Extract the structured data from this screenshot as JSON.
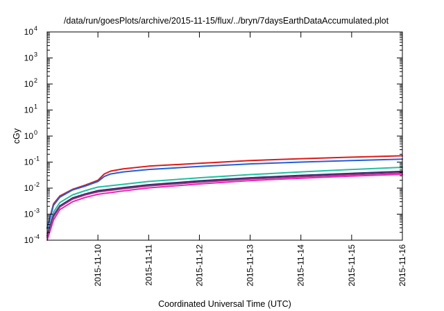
{
  "chart_data": {
    "type": "line",
    "title": "/data/run/goesPlots/archive/2015-11-15/flux/../bryn/7daysEarthDataAccumulated.plot",
    "xlabel": "Coordinated Universal Time (UTC)",
    "ylabel": "cGy",
    "yscale": "log",
    "ylim": [
      0.0001,
      10000
    ],
    "xlim": [
      "2015-11-09 00:00",
      "2015-11-16 00:00"
    ],
    "grid": false,
    "legend": "none",
    "x_tick_labels": [
      "2015-11-10",
      "2015-11-11",
      "2015-11-12",
      "2015-11-13",
      "2015-11-14",
      "2015-11-15",
      "2015-11-16"
    ],
    "y_tick_exponents": [
      "-4",
      "-3",
      "-2",
      "-1",
      "0",
      "1",
      "2",
      "3",
      "4"
    ],
    "y_tick_base": "10",
    "series": [
      {
        "color": "#e01818",
        "x": [
          "2015-11-09 00:00",
          "2015-11-09 03:00",
          "2015-11-09 06:00",
          "2015-11-09 12:00",
          "2015-11-09 18:00",
          "2015-11-10 00:00",
          "2015-11-10 03:00",
          "2015-11-10 06:00",
          "2015-11-10 12:00",
          "2015-11-11 00:00",
          "2015-11-12 00:00",
          "2015-11-13 00:00",
          "2015-11-14 00:00",
          "2015-11-15 00:00",
          "2015-11-16 00:00"
        ],
        "values": [
          0.0003,
          0.0025,
          0.005,
          0.009,
          0.013,
          0.02,
          0.035,
          0.045,
          0.055,
          0.07,
          0.09,
          0.115,
          0.135,
          0.155,
          0.175
        ]
      },
      {
        "color": "#1f5fe0",
        "x": [
          "2015-11-09 00:00",
          "2015-11-09 03:00",
          "2015-11-09 06:00",
          "2015-11-09 12:00",
          "2015-11-09 18:00",
          "2015-11-10 00:00",
          "2015-11-10 03:00",
          "2015-11-10 06:00",
          "2015-11-10 12:00",
          "2015-11-11 00:00",
          "2015-11-12 00:00",
          "2015-11-13 00:00",
          "2015-11-14 00:00",
          "2015-11-15 00:00",
          "2015-11-16 00:00"
        ],
        "values": [
          0.00028,
          0.0022,
          0.0045,
          0.0085,
          0.012,
          0.018,
          0.028,
          0.035,
          0.042,
          0.052,
          0.068,
          0.085,
          0.1,
          0.115,
          0.13
        ]
      },
      {
        "color": "#1fc0a0",
        "x": [
          "2015-11-09 00:00",
          "2015-11-09 03:00",
          "2015-11-09 06:00",
          "2015-11-09 12:00",
          "2015-11-09 18:00",
          "2015-11-10 00:00",
          "2015-11-10 12:00",
          "2015-11-11 00:00",
          "2015-11-12 00:00",
          "2015-11-13 00:00",
          "2015-11-14 00:00",
          "2015-11-15 00:00",
          "2015-11-16 00:00"
        ],
        "values": [
          0.00018,
          0.0012,
          0.0028,
          0.0055,
          0.008,
          0.011,
          0.014,
          0.018,
          0.025,
          0.033,
          0.042,
          0.052,
          0.063
        ]
      },
      {
        "color": "#2e2e6e",
        "x": [
          "2015-11-09 00:00",
          "2015-11-09 03:00",
          "2015-11-09 06:00",
          "2015-11-09 12:00",
          "2015-11-09 18:00",
          "2015-11-10 00:00",
          "2015-11-10 12:00",
          "2015-11-11 00:00",
          "2015-11-12 00:00",
          "2015-11-13 00:00",
          "2015-11-14 00:00",
          "2015-11-15 00:00",
          "2015-11-16 00:00"
        ],
        "values": [
          0.00015,
          0.0009,
          0.0021,
          0.0042,
          0.006,
          0.008,
          0.0105,
          0.0135,
          0.019,
          0.025,
          0.031,
          0.037,
          0.044
        ]
      },
      {
        "color": "#9a2a7a",
        "x": [
          "2015-11-09 00:00",
          "2015-11-09 03:00",
          "2015-11-09 06:00",
          "2015-11-09 12:00",
          "2015-11-09 18:00",
          "2015-11-10 00:00",
          "2015-11-10 12:00",
          "2015-11-11 00:00",
          "2015-11-12 00:00",
          "2015-11-13 00:00",
          "2015-11-14 00:00",
          "2015-11-15 00:00",
          "2015-11-16 00:00"
        ],
        "values": [
          0.00013,
          0.0008,
          0.0019,
          0.0038,
          0.0055,
          0.0072,
          0.0095,
          0.0122,
          0.017,
          0.0225,
          0.0275,
          0.033,
          0.039
        ]
      },
      {
        "color": "#ee22bb",
        "x": [
          "2015-11-09 00:00",
          "2015-11-09 03:00",
          "2015-11-09 06:00",
          "2015-11-09 12:00",
          "2015-11-09 18:00",
          "2015-11-10 00:00",
          "2015-11-10 12:00",
          "2015-11-11 00:00",
          "2015-11-12 00:00",
          "2015-11-13 00:00",
          "2015-11-14 00:00",
          "2015-11-15 00:00",
          "2015-11-16 00:00"
        ],
        "values": [
          0.0001,
          0.0006,
          0.0015,
          0.003,
          0.0044,
          0.0058,
          0.0078,
          0.0102,
          0.0145,
          0.0195,
          0.024,
          0.029,
          0.034
        ]
      }
    ]
  }
}
